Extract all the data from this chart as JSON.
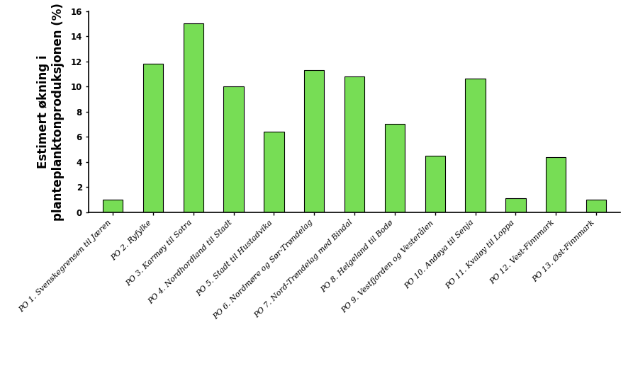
{
  "categories": [
    "PO 1. Svenskegrensen til Jæren",
    "PO 2. Ryfylke",
    "PO 3. Karmøy til Sotra",
    "PO 4. Nordhordland til Stadt",
    "PO 5. Stadt til Hustadvika",
    "PO 6. Nordmøre og Sør-Trøndelag",
    "PO 7. Nord-Trøndelag med Bindal",
    "PO 8. Helgeland til Bodø",
    "PO 9. Vestfjorden og Vesterålen",
    "PO 10. Andøya til Senja",
    "PO 11. Kvaløy til Loppa",
    "PO 12. Vest-Finnmark",
    "PO 13. Øst-Finnmark"
  ],
  "values": [
    1.0,
    11.8,
    15.0,
    10.0,
    6.4,
    11.3,
    10.8,
    7.0,
    4.5,
    10.6,
    1.1,
    4.4,
    1.0
  ],
  "bar_color": "#77DD55",
  "bar_edgecolor": "#000000",
  "ylabel": "Estimert økning i\nplanteplanktonproduksjonen (%)",
  "ylim": [
    0,
    16
  ],
  "yticks": [
    0,
    2,
    4,
    6,
    8,
    10,
    12,
    14,
    16
  ],
  "ylabel_fontsize": 12,
  "tick_label_fontsize": 8.5,
  "xtick_fontsize": 8,
  "bar_width": 0.5,
  "background_color": "#ffffff"
}
